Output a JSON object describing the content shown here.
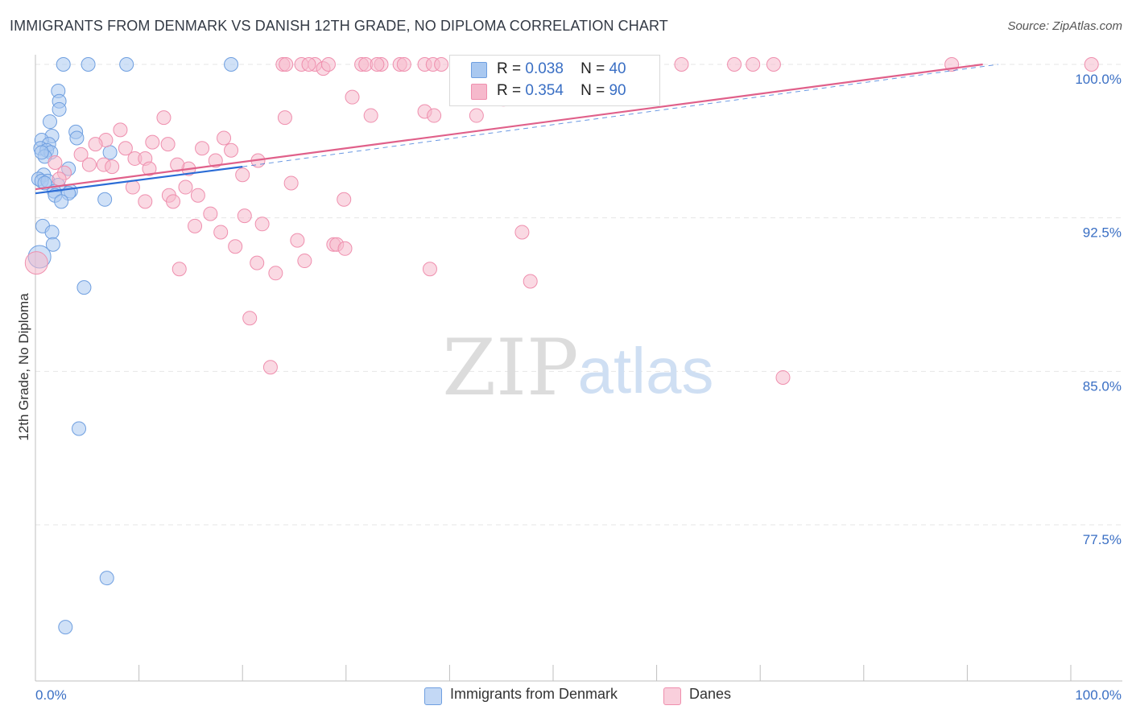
{
  "title": "IMMIGRANTS FROM DENMARK VS DANISH 12TH GRADE, NO DIPLOMA CORRELATION CHART",
  "source": "Source: ZipAtlas.com",
  "watermark": {
    "zip": "ZIP",
    "atlas": "atlas"
  },
  "legend": {
    "r_label": "R =",
    "n_label": "N =",
    "series": [
      {
        "name": "Immigrants from Denmark",
        "r": "0.038",
        "n": "40"
      },
      {
        "name": "Danes",
        "r": "0.354",
        "n": "90"
      }
    ]
  },
  "colors": {
    "blue_fill": "#a9c8f0",
    "blue_stroke": "#6f9fe0",
    "blue_line": "#2b6cd6",
    "pink_fill": "#f6b9cc",
    "pink_stroke": "#ef8fae",
    "pink_line": "#e0608a",
    "grid": "#e6e6e6",
    "axis_text": "#3a6fc4"
  },
  "chart_data": {
    "type": "scatter",
    "title": "IMMIGRANTS FROM DENMARK VS DANISH 12TH GRADE, NO DIPLOMA CORRELATION CHART",
    "xlabel": "",
    "ylabel": "12th Grade, No Diploma",
    "xlim": [
      0,
      100
    ],
    "ylim": [
      71.5,
      100.5
    ],
    "x_tick_labels": [
      "0.0%",
      "100.0%"
    ],
    "y_ticks": [
      77.5,
      85.0,
      92.5,
      100.0
    ],
    "y_tick_labels": [
      "77.5%",
      "85.0%",
      "92.5%",
      "100.0%"
    ],
    "series": [
      {
        "name": "Immigrants from Denmark",
        "r": 0.038,
        "n": 40,
        "trend": {
          "x": [
            0,
            20
          ],
          "y": [
            93.7,
            95.0
          ]
        },
        "trend_ext": {
          "x": [
            20,
            93
          ],
          "y": [
            95.0,
            100.0
          ]
        },
        "points": [
          {
            "x": 2.7,
            "y": 100.0
          },
          {
            "x": 5.1,
            "y": 100.0
          },
          {
            "x": 8.8,
            "y": 100.0
          },
          {
            "x": 18.9,
            "y": 100.0
          },
          {
            "x": 2.2,
            "y": 98.7
          },
          {
            "x": 2.3,
            "y": 98.2
          },
          {
            "x": 2.3,
            "y": 97.8
          },
          {
            "x": 1.4,
            "y": 97.2
          },
          {
            "x": 3.9,
            "y": 96.7
          },
          {
            "x": 1.6,
            "y": 96.5
          },
          {
            "x": 4.0,
            "y": 96.4
          },
          {
            "x": 0.6,
            "y": 96.3
          },
          {
            "x": 1.3,
            "y": 96.1
          },
          {
            "x": 0.5,
            "y": 95.9
          },
          {
            "x": 1.1,
            "y": 95.8
          },
          {
            "x": 1.5,
            "y": 95.7
          },
          {
            "x": 7.2,
            "y": 95.7
          },
          {
            "x": 0.9,
            "y": 95.5
          },
          {
            "x": 3.2,
            "y": 94.9
          },
          {
            "x": 0.8,
            "y": 94.6
          },
          {
            "x": 0.3,
            "y": 94.4
          },
          {
            "x": 0.6,
            "y": 94.3
          },
          {
            "x": 1.2,
            "y": 94.3
          },
          {
            "x": 2.2,
            "y": 94.1
          },
          {
            "x": 1.8,
            "y": 93.8
          },
          {
            "x": 3.4,
            "y": 93.8
          },
          {
            "x": 1.9,
            "y": 93.6
          },
          {
            "x": 3.2,
            "y": 93.7
          },
          {
            "x": 6.7,
            "y": 93.4
          },
          {
            "x": 2.5,
            "y": 93.3
          },
          {
            "x": 0.7,
            "y": 92.1
          },
          {
            "x": 1.6,
            "y": 91.8
          },
          {
            "x": 1.7,
            "y": 91.2
          },
          {
            "x": 0.4,
            "y": 90.6
          },
          {
            "x": 4.7,
            "y": 89.1
          },
          {
            "x": 4.2,
            "y": 82.2
          },
          {
            "x": 6.9,
            "y": 74.9
          },
          {
            "x": 2.9,
            "y": 72.5
          },
          {
            "x": 0.6,
            "y": 95.7
          },
          {
            "x": 0.9,
            "y": 94.2
          }
        ]
      },
      {
        "name": "Danes",
        "r": 0.354,
        "n": 90,
        "trend": {
          "x": [
            0,
            91.5
          ],
          "y": [
            93.9,
            100.0
          ]
        },
        "points": [
          {
            "x": 23.9,
            "y": 100.0
          },
          {
            "x": 24.2,
            "y": 100.0
          },
          {
            "x": 25.7,
            "y": 100.0
          },
          {
            "x": 27.0,
            "y": 100.0
          },
          {
            "x": 27.8,
            "y": 99.8
          },
          {
            "x": 28.3,
            "y": 100.0
          },
          {
            "x": 31.5,
            "y": 100.0
          },
          {
            "x": 31.9,
            "y": 100.0
          },
          {
            "x": 33.4,
            "y": 100.0
          },
          {
            "x": 35.2,
            "y": 100.0
          },
          {
            "x": 37.6,
            "y": 100.0
          },
          {
            "x": 38.4,
            "y": 100.0
          },
          {
            "x": 39.2,
            "y": 100.0
          },
          {
            "x": 41.4,
            "y": 100.0
          },
          {
            "x": 42.0,
            "y": 100.0
          },
          {
            "x": 44.5,
            "y": 100.0
          },
          {
            "x": 52.0,
            "y": 100.0
          },
          {
            "x": 56.2,
            "y": 100.0
          },
          {
            "x": 62.4,
            "y": 100.0
          },
          {
            "x": 67.5,
            "y": 100.0
          },
          {
            "x": 69.3,
            "y": 100.0
          },
          {
            "x": 71.3,
            "y": 100.0
          },
          {
            "x": 88.5,
            "y": 100.0
          },
          {
            "x": 102.0,
            "y": 100.0
          },
          {
            "x": 45.2,
            "y": 98.3
          },
          {
            "x": 41.1,
            "y": 98.6
          },
          {
            "x": 30.6,
            "y": 98.4
          },
          {
            "x": 37.6,
            "y": 97.7
          },
          {
            "x": 38.5,
            "y": 97.5
          },
          {
            "x": 42.6,
            "y": 97.5
          },
          {
            "x": 32.4,
            "y": 97.5
          },
          {
            "x": 24.1,
            "y": 97.4
          },
          {
            "x": 12.4,
            "y": 97.4
          },
          {
            "x": 8.2,
            "y": 96.8
          },
          {
            "x": 18.2,
            "y": 96.4
          },
          {
            "x": 6.8,
            "y": 96.3
          },
          {
            "x": 11.3,
            "y": 96.2
          },
          {
            "x": 12.8,
            "y": 96.1
          },
          {
            "x": 5.8,
            "y": 96.1
          },
          {
            "x": 16.1,
            "y": 95.9
          },
          {
            "x": 8.7,
            "y": 95.9
          },
          {
            "x": 18.9,
            "y": 95.8
          },
          {
            "x": 4.4,
            "y": 95.6
          },
          {
            "x": 9.6,
            "y": 95.4
          },
          {
            "x": 10.6,
            "y": 95.4
          },
          {
            "x": 17.4,
            "y": 95.3
          },
          {
            "x": 5.2,
            "y": 95.1
          },
          {
            "x": 6.6,
            "y": 95.1
          },
          {
            "x": 7.4,
            "y": 95.0
          },
          {
            "x": 11.0,
            "y": 94.9
          },
          {
            "x": 14.8,
            "y": 94.9
          },
          {
            "x": 1.9,
            "y": 95.2
          },
          {
            "x": 2.8,
            "y": 94.7
          },
          {
            "x": 20.0,
            "y": 94.6
          },
          {
            "x": 24.7,
            "y": 94.2
          },
          {
            "x": 9.4,
            "y": 94.0
          },
          {
            "x": 14.5,
            "y": 94.0
          },
          {
            "x": 12.9,
            "y": 93.6
          },
          {
            "x": 15.7,
            "y": 93.6
          },
          {
            "x": 29.8,
            "y": 93.4
          },
          {
            "x": 10.6,
            "y": 93.3
          },
          {
            "x": 13.3,
            "y": 93.3
          },
          {
            "x": 16.9,
            "y": 92.7
          },
          {
            "x": 20.2,
            "y": 92.6
          },
          {
            "x": 21.9,
            "y": 92.2
          },
          {
            "x": 15.4,
            "y": 92.1
          },
          {
            "x": 17.9,
            "y": 91.8
          },
          {
            "x": 47.0,
            "y": 91.8
          },
          {
            "x": 25.3,
            "y": 91.4
          },
          {
            "x": 19.3,
            "y": 91.1
          },
          {
            "x": 28.8,
            "y": 91.2
          },
          {
            "x": 29.1,
            "y": 91.2
          },
          {
            "x": 29.9,
            "y": 91.0
          },
          {
            "x": 26.0,
            "y": 90.4
          },
          {
            "x": 21.4,
            "y": 90.3
          },
          {
            "x": 38.1,
            "y": 90.0
          },
          {
            "x": 13.9,
            "y": 90.0
          },
          {
            "x": 23.2,
            "y": 89.8
          },
          {
            "x": 47.8,
            "y": 89.4
          },
          {
            "x": 20.7,
            "y": 87.6
          },
          {
            "x": 22.7,
            "y": 85.2
          },
          {
            "x": 72.2,
            "y": 84.7
          },
          {
            "x": 0.1,
            "y": 90.3
          },
          {
            "x": 35.6,
            "y": 100.0
          },
          {
            "x": 26.4,
            "y": 100.0
          },
          {
            "x": 33.0,
            "y": 100.0
          },
          {
            "x": 50.2,
            "y": 100.0
          },
          {
            "x": 21.5,
            "y": 95.3
          },
          {
            "x": 13.7,
            "y": 95.1
          },
          {
            "x": 2.3,
            "y": 94.4
          }
        ]
      }
    ]
  }
}
